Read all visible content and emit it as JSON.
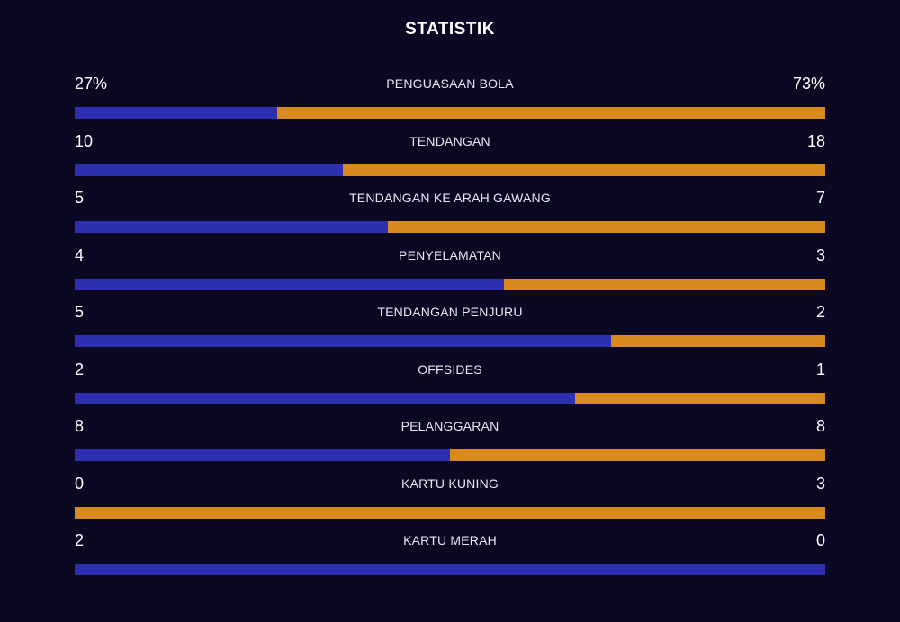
{
  "title": "STATISTIK",
  "colors": {
    "home": "#2d2fb0",
    "away": "#d98a1f",
    "background": "#0a0822"
  },
  "stats": [
    {
      "label": "PENGUASAAN BOLA",
      "home": "27%",
      "away": "73%",
      "home_value": 27,
      "away_value": 73
    },
    {
      "label": "TENDANGAN",
      "home": "10",
      "away": "18",
      "home_value": 10,
      "away_value": 18
    },
    {
      "label": "TENDANGAN KE ARAH GAWANG",
      "home": "5",
      "away": "7",
      "home_value": 5,
      "away_value": 7
    },
    {
      "label": "PENYELAMATAN",
      "home": "4",
      "away": "3",
      "home_value": 4,
      "away_value": 3
    },
    {
      "label": "TENDANGAN PENJURU",
      "home": "5",
      "away": "2",
      "home_value": 5,
      "away_value": 2
    },
    {
      "label": "OFFSIDES",
      "home": "2",
      "away": "1",
      "home_value": 2,
      "away_value": 1
    },
    {
      "label": "PELANGGARAN",
      "home": "8",
      "away": "8",
      "home_value": 8,
      "away_value": 8
    },
    {
      "label": "KARTU KUNING",
      "home": "0",
      "away": "3",
      "home_value": 0,
      "away_value": 3
    },
    {
      "label": "KARTU MERAH",
      "home": "2",
      "away": "0",
      "home_value": 2,
      "away_value": 0
    }
  ]
}
